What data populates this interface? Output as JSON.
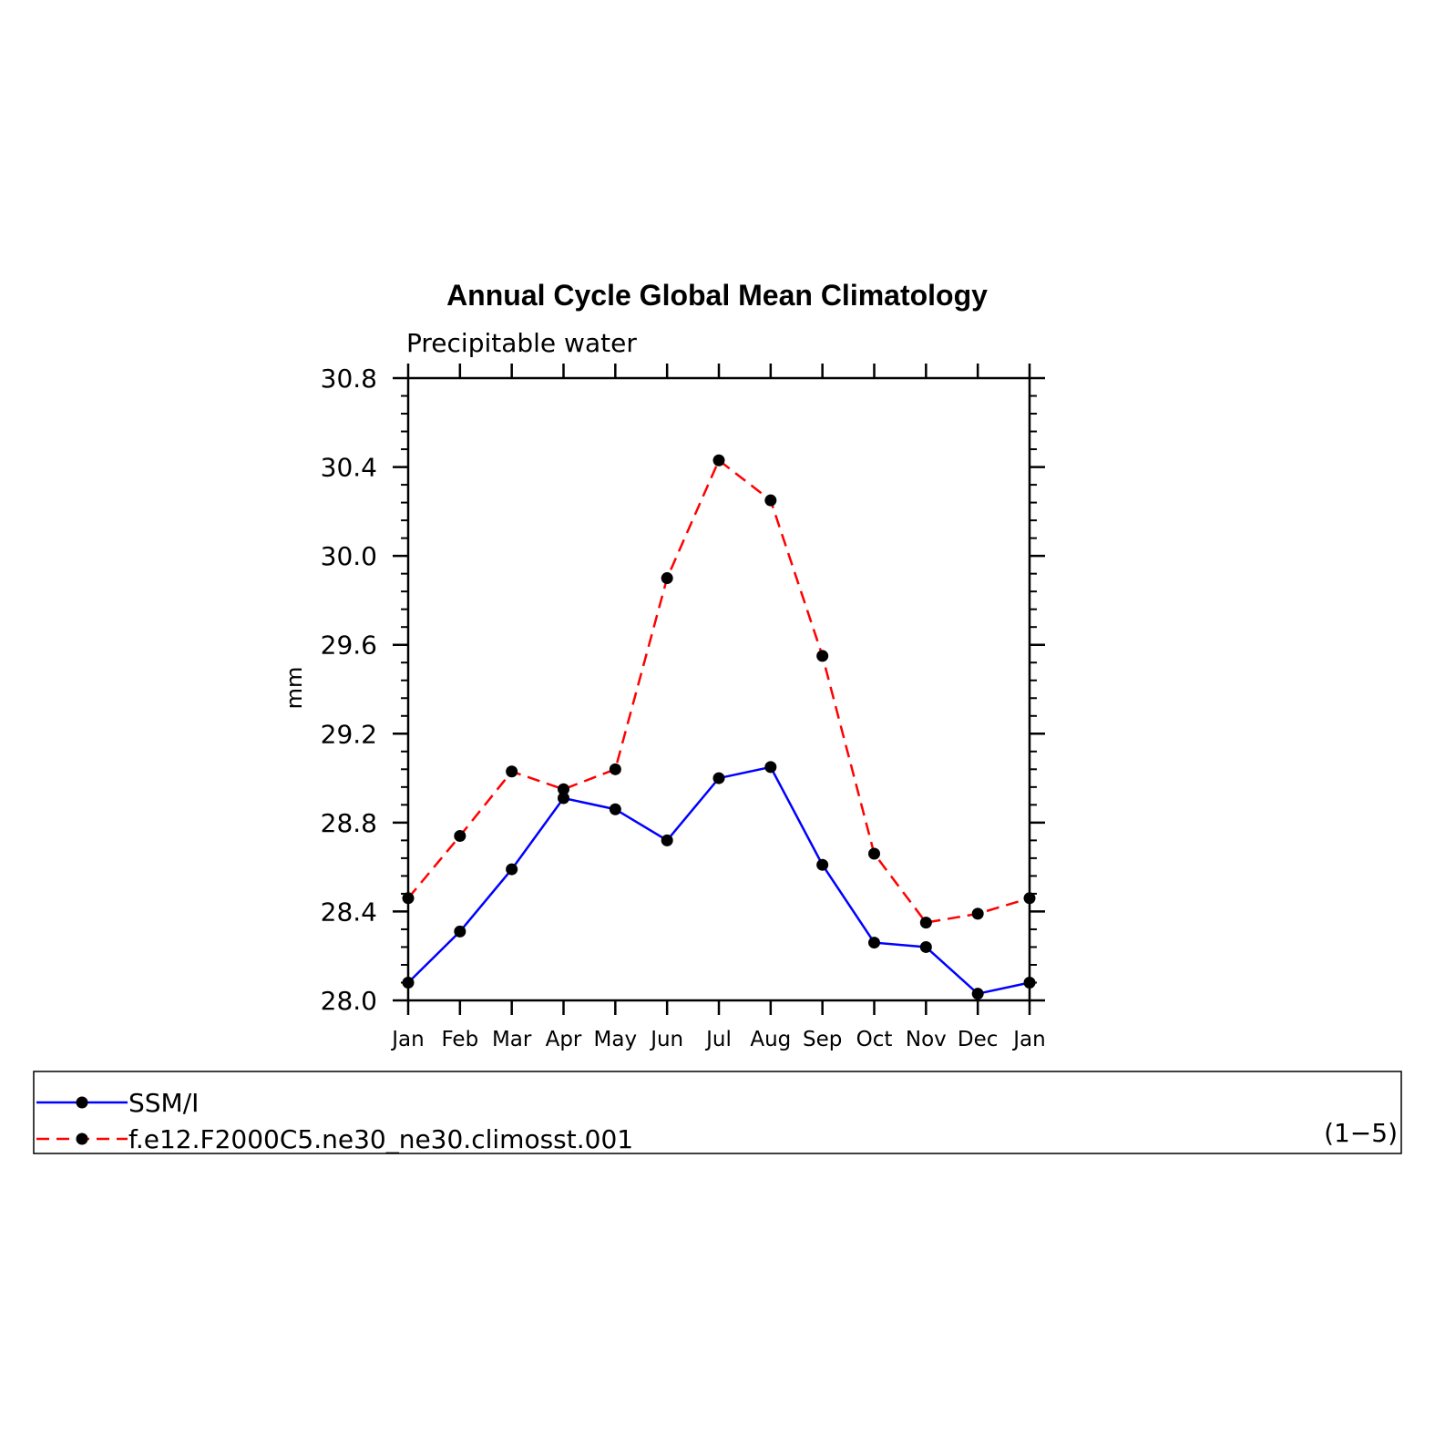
{
  "chart_data": {
    "type": "line",
    "title": "Annual Cycle Global Mean Climatology",
    "subtitle": "Precipitable water",
    "xlabel": "",
    "ylabel": "mm",
    "categories": [
      "Jan",
      "Feb",
      "Mar",
      "Apr",
      "May",
      "Jun",
      "Jul",
      "Aug",
      "Sep",
      "Oct",
      "Nov",
      "Dec",
      "Jan"
    ],
    "ylim": [
      28.0,
      30.8
    ],
    "yticks": [
      "28.0",
      "28.4",
      "28.8",
      "29.2",
      "29.6",
      "30.0",
      "30.4",
      "30.8"
    ],
    "series": [
      {
        "name": "SSM/I",
        "color": "#0000ff",
        "dash": "solid",
        "marker": "dot",
        "values": [
          28.08,
          28.31,
          28.59,
          28.91,
          28.86,
          28.72,
          29.0,
          29.05,
          28.61,
          28.26,
          28.24,
          28.03,
          28.08
        ]
      },
      {
        "name": "f.e12.F2000C5.ne30_ne30.climosst.001",
        "color": "#ff0000",
        "dash": "dashed",
        "marker": "dot",
        "values": [
          28.46,
          28.74,
          29.03,
          28.95,
          29.04,
          29.9,
          30.43,
          30.25,
          29.55,
          28.66,
          28.35,
          28.39,
          28.46
        ]
      }
    ],
    "grid": false,
    "legend_position": "bottom",
    "legend_note": "(1−5)"
  }
}
